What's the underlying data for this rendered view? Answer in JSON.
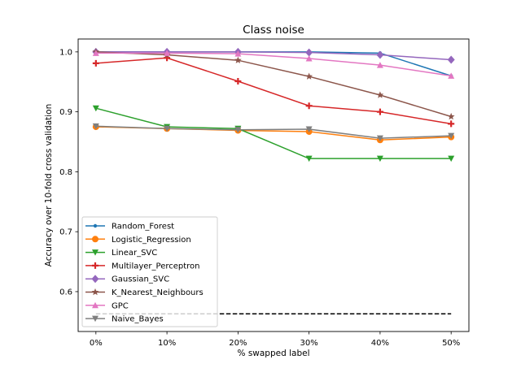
{
  "chart_data": {
    "type": "line",
    "title": "Class noise",
    "xlabel": "% swapped label",
    "ylabel": "Accuracy over 10-fold cross validation",
    "categories": [
      "0%",
      "10%",
      "20%",
      "30%",
      "40%",
      "50%"
    ],
    "x": [
      0,
      10,
      20,
      30,
      40,
      50
    ],
    "xlim": [
      -2.5,
      52.5
    ],
    "ylim": [
      0.5335,
      1.0215
    ],
    "yticks": [
      0.6,
      0.7,
      0.8,
      0.9,
      1.0
    ],
    "ytick_labels": [
      "0.6",
      "0.7",
      "0.8",
      "0.9",
      "1.0"
    ],
    "grid": false,
    "legend_position": "lower-left",
    "baseline": {
      "value": 0.563,
      "x_range": [
        0,
        50
      ],
      "style": "dashed",
      "color": "#000000"
    },
    "series": [
      {
        "name": "Random_Forest",
        "color": "#1f77b4",
        "marker": "point",
        "values": [
          1.0,
          1.0,
          1.0,
          1.0,
          0.998,
          0.96
        ]
      },
      {
        "name": "Logistic_Regression",
        "color": "#ff7f0e",
        "marker": "circle",
        "values": [
          0.875,
          0.872,
          0.869,
          0.867,
          0.853,
          0.858
        ]
      },
      {
        "name": "Linear_SVC",
        "color": "#2ca02c",
        "marker": "triangle-down",
        "values": [
          0.906,
          0.875,
          0.872,
          0.822,
          0.822,
          0.822
        ]
      },
      {
        "name": "Multilayer_Perceptron",
        "color": "#d62728",
        "marker": "plus",
        "values": [
          0.981,
          0.99,
          0.951,
          0.91,
          0.9,
          0.88
        ]
      },
      {
        "name": "Gaussian_SVC",
        "color": "#9467bd",
        "marker": "diamond",
        "values": [
          1.0,
          1.0,
          1.0,
          0.999,
          0.995,
          0.987
        ]
      },
      {
        "name": "K_Nearest_Neighbours",
        "color": "#8c564b",
        "marker": "star",
        "values": [
          1.0,
          0.995,
          0.986,
          0.959,
          0.928,
          0.892
        ]
      },
      {
        "name": "GPC",
        "color": "#e377c2",
        "marker": "triangle-up",
        "values": [
          0.998,
          0.998,
          0.997,
          0.989,
          0.978,
          0.96
        ]
      },
      {
        "name": "Naive_Bayes",
        "color": "#7f7f7f",
        "marker": "triangle-down",
        "values": [
          0.876,
          0.872,
          0.87,
          0.871,
          0.856,
          0.86
        ]
      }
    ]
  }
}
